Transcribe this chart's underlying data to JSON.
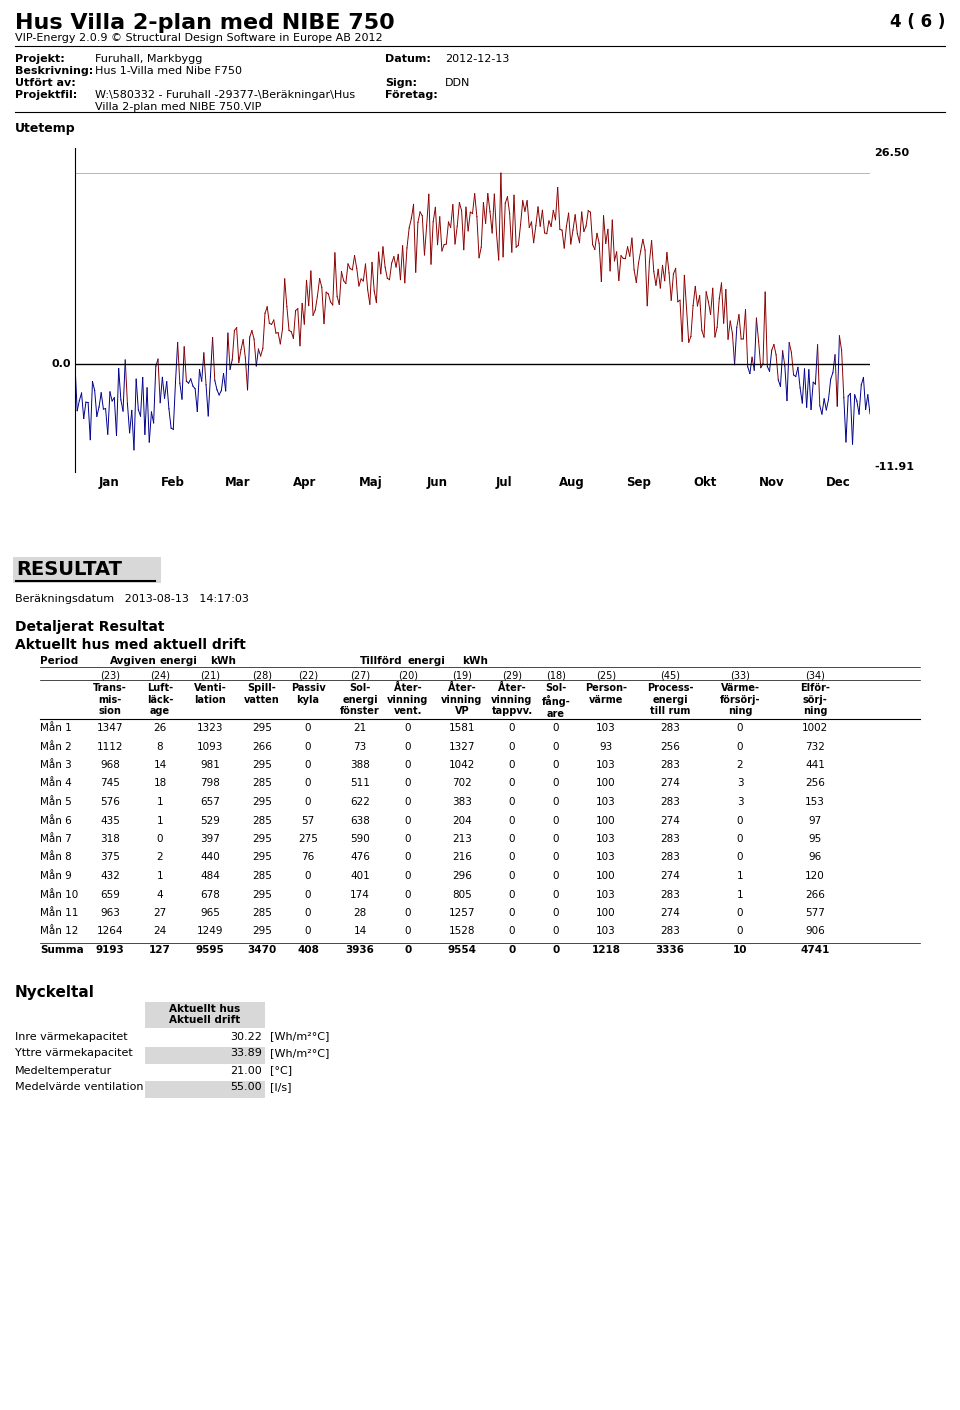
{
  "title": "Hus Villa 2-plan med NIBE 750",
  "page_num": "4 ( 6 )",
  "subtitle": "VIP-Energy 2.0.9 © Structural Design Software in Europe AB 2012",
  "projekt": "Furuhall, Markbygg",
  "datum": "2012-12-13",
  "beskrivning": "Hus 1-Villa med Nibe F750",
  "utfort_av": "",
  "sign": "DDN",
  "foretag": "",
  "utetemp_label": "Utetemp",
  "temp_max": "26.50",
  "temp_min": "-11.91",
  "months": [
    "Jan",
    "Feb",
    "Mar",
    "Apr",
    "Maj",
    "Jun",
    "Jul",
    "Aug",
    "Sep",
    "Okt",
    "Nov",
    "Dec"
  ],
  "resultat_label": "RESULTAT",
  "berakningsdatum": "Beräkningsdatum   2013-08-13   14:17:03",
  "detaljerat": "Detaljerat Resultat",
  "aktuellt": "Aktuellt hus med aktuell drift",
  "months_data": [
    "Mån 1",
    "Mån 2",
    "Mån 3",
    "Mån 4",
    "Mån 5",
    "Mån 6",
    "Mån 7",
    "Mån 8",
    "Mån 9",
    "Mån 10",
    "Mån 11",
    "Mån 12",
    "Summa"
  ],
  "transmission": [
    1347,
    1112,
    968,
    745,
    576,
    435,
    318,
    375,
    432,
    659,
    963,
    1264,
    9193
  ],
  "luftlackage": [
    26,
    8,
    14,
    18,
    1,
    1,
    0,
    2,
    1,
    4,
    27,
    24,
    127
  ],
  "ventilation": [
    1323,
    1093,
    981,
    798,
    657,
    529,
    397,
    440,
    484,
    678,
    965,
    1249,
    9595
  ],
  "spillvatten": [
    295,
    266,
    295,
    285,
    295,
    285,
    295,
    295,
    285,
    295,
    285,
    295,
    3470
  ],
  "passiv_kyla": [
    0,
    0,
    0,
    0,
    0,
    57,
    275,
    76,
    0,
    0,
    0,
    0,
    408
  ],
  "sol_energi": [
    21,
    73,
    388,
    511,
    622,
    638,
    590,
    476,
    401,
    174,
    28,
    14,
    3936
  ],
  "atervinning_vent": [
    0,
    0,
    0,
    0,
    0,
    0,
    0,
    0,
    0,
    0,
    0,
    0,
    0
  ],
  "atervinning_vp": [
    1581,
    1327,
    1042,
    702,
    383,
    204,
    213,
    216,
    296,
    805,
    1257,
    1528,
    9554
  ],
  "atervinning_tappvv": [
    0,
    0,
    0,
    0,
    0,
    0,
    0,
    0,
    0,
    0,
    0,
    0,
    0
  ],
  "solfangare": [
    0,
    0,
    0,
    0,
    0,
    0,
    0,
    0,
    0,
    0,
    0,
    0,
    0
  ],
  "personvarme": [
    103,
    93,
    103,
    100,
    103,
    100,
    103,
    103,
    100,
    103,
    100,
    103,
    1218
  ],
  "processvarme": [
    283,
    256,
    283,
    274,
    283,
    274,
    283,
    283,
    274,
    283,
    274,
    283,
    3336
  ],
  "varmeforsorjning": [
    0,
    0,
    2,
    3,
    3,
    0,
    0,
    0,
    1,
    1,
    0,
    0,
    10
  ],
  "elforsorjning": [
    1002,
    732,
    441,
    256,
    153,
    97,
    95,
    96,
    120,
    266,
    577,
    906,
    4741
  ],
  "nyckeltal_header": "Nyckeltal",
  "inre_varmekapacitet_label": "Inre värmekapacitet",
  "yttre_varmekapacitet_label": "Yttre värmekapacitet",
  "medeltemperatur_label": "Medeltemperatur",
  "medelvarde_ventilation_label": "Medelvärde ventilation",
  "inre_varmekapacitet": "30.22",
  "yttre_varmekapacitet": "33.89",
  "medeltemperatur": "21.00",
  "medelvarde_ventilation": "55.00",
  "inre_unit": "[Wh/m²°C]",
  "yttre_unit": "[Wh/m²°C]",
  "temp_unit": "[°C]",
  "vent_unit": "[l/s]",
  "bg_color": "#ffffff",
  "text_color": "#000000",
  "gray_bg": "#d8d8d8"
}
